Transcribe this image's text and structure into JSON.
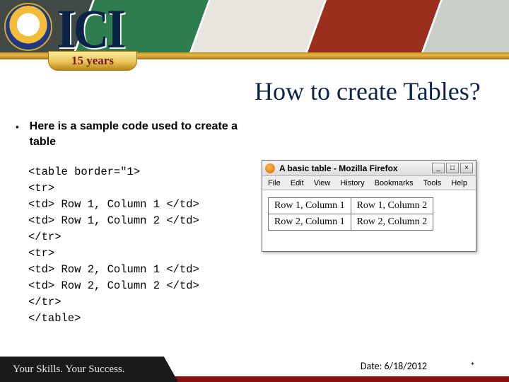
{
  "banner": {
    "logo_letters": "ICI",
    "ribbon_text": "15  years",
    "stripe_colors": [
      "#404945",
      "#2e7d4e",
      "#e8e5de",
      "#9b2f1e",
      "#c9cec9"
    ]
  },
  "title": "How to create Tables?",
  "bullet": {
    "marker": "•",
    "text": "Here is a sample code used to create a table"
  },
  "code": "<table border=\"1>\n<tr>\n<td> Row 1, Column 1 </td>\n<td> Row 1, Column 2 </td>\n</tr>\n<tr>\n<td> Row 2, Column 1 </td>\n<td> Row 2, Column 2 </td>\n</tr>\n</table>",
  "browser": {
    "title": "A basic table - Mozilla Firefox",
    "menus": [
      "File",
      "Edit",
      "View",
      "History",
      "Bookmarks",
      "Tools",
      "Help"
    ],
    "win_buttons": [
      "_",
      "□",
      "×"
    ],
    "table": {
      "rows": [
        [
          "Row 1, Column 1",
          "Row 1, Column 2"
        ],
        [
          "Row 2, Column 1",
          "Row 2, Column 2"
        ]
      ]
    }
  },
  "footer": {
    "tagline": "Your Skills. Your Success.",
    "date_label": "Date: 6/18/2012",
    "page_marker": "*"
  }
}
